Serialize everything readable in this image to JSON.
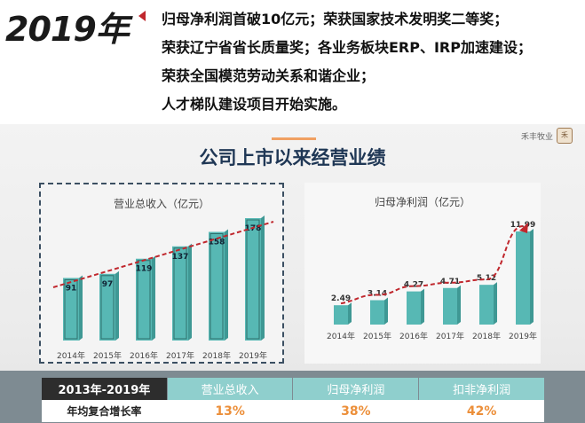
{
  "header": {
    "year": "2019年",
    "bullet_lines": [
      "归母净利润首破10亿元；荣获国家技术发明奖二等奖；",
      "荣获辽宁省省长质量奖；各业务板块ERP、IRP加速建设；",
      "荣获全国模范劳动关系和谐企业；",
      "人才梯队建设项目开始实施。"
    ]
  },
  "panel": {
    "title": "公司上市以来经营业绩",
    "logo_text": "禾丰牧业",
    "logo_mark": "禾"
  },
  "chart_data": [
    {
      "type": "bar",
      "title": "营业总收入（亿元）",
      "categories": [
        "2014年",
        "2015年",
        "2016年",
        "2017年",
        "2018年",
        "2019年"
      ],
      "values": [
        91,
        97,
        119,
        137,
        158,
        178
      ],
      "trend_line": "straight dashed red rising",
      "colors": {
        "bar": "#57b8b4",
        "trend": "#c0272d"
      }
    },
    {
      "type": "bar",
      "title": "归母净利润（亿元）",
      "categories": [
        "2014年",
        "2015年",
        "2016年",
        "2017年",
        "2018年",
        "2019年"
      ],
      "values": [
        2.49,
        3.14,
        4.27,
        4.71,
        5.12,
        11.99
      ],
      "trend_line": "curved dashed red rising",
      "colors": {
        "bar": "#57b8b4",
        "trend": "#c0272d"
      }
    }
  ],
  "table": {
    "header_first": "2013年-2019年",
    "headers": [
      "营业总收入",
      "归母净利润",
      "扣非净利润"
    ],
    "row_label": "年均复合增长率",
    "values": [
      "13%",
      "38%",
      "42%"
    ],
    "colors": {
      "header_bg": "#8fcfcd",
      "value_text": "#ec8f3a"
    }
  }
}
